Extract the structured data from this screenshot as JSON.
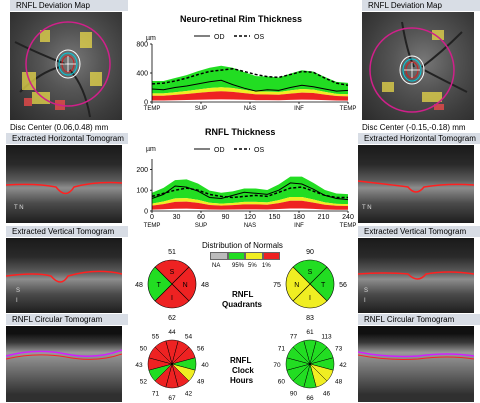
{
  "left": {
    "deviation_title": "RNFL Deviation Map",
    "disc_center": "Disc Center  (0.06,0.48) mm",
    "horiz_title": "Extracted Horizontal Tomogram",
    "vert_title": "Extracted Vertical Tomogram",
    "circ_title": "RNFL Circular Tomogram"
  },
  "right": {
    "deviation_title": "RNFL Deviation Map",
    "disc_center": "Disc Center  (-0.15,-0.18) mm",
    "horiz_title": "Extracted Horizontal Tomogram",
    "vert_title": "Extracted Vertical Tomogram",
    "circ_title": "RNFL Circular Tomogram"
  },
  "tomo_markers": {
    "horiz_left": "T  N",
    "vert_left_s": "S",
    "vert_left_i": "I",
    "horiz_right": "T  N",
    "vert_right_s": "S",
    "vert_right_i": "I"
  },
  "center": {
    "nr_title": "Neuro-retinal Rim Thickness",
    "rnfl_title": "RNFL Thickness",
    "legend_od": "OD",
    "legend_os": "OS",
    "unit": "µm",
    "distribution_title": "Distribution of Normals",
    "dist_labels": [
      "NA",
      "95%",
      "5%",
      "1%"
    ],
    "quadrants_label": [
      "RNFL",
      "Quadrants"
    ],
    "clock_label": [
      "RNFL",
      "Clock",
      "Hours"
    ]
  },
  "colors": {
    "green": "#22dd22",
    "yellow": "#f0ee22",
    "red": "#ee2222",
    "gray": "#bbbbbb",
    "white": "#ffffff",
    "od_line": "#000000",
    "os_line": "#000000"
  },
  "chart_data": [
    {
      "type": "area",
      "title": "Neuro-retinal Rim Thickness",
      "ylabel": "µm",
      "x_ticks": [
        "TEMP",
        "SUP",
        "NAS",
        "INF",
        "TEMP"
      ],
      "y_ticks": [
        0,
        400,
        800
      ],
      "ylim": [
        0,
        800
      ],
      "series": [
        {
          "name": "OD",
          "values": [
            180,
            170,
            200,
            220,
            250,
            280,
            300,
            240,
            190,
            150,
            170,
            160,
            200,
            230,
            210,
            180,
            150,
            160
          ]
        },
        {
          "name": "OS",
          "values": [
            250,
            260,
            290,
            330,
            380,
            420,
            440,
            460,
            420,
            380,
            350,
            340,
            380,
            420,
            410,
            330,
            260,
            230
          ]
        }
      ]
    },
    {
      "type": "area",
      "title": "RNFL Thickness",
      "ylabel": "µm",
      "x_ticks": [
        "0",
        "30",
        "60",
        "90",
        "120",
        "150",
        "180",
        "210",
        "240"
      ],
      "x_ticks_bottom": [
        "TEMP",
        "SUP",
        "NAS",
        "INF",
        "TEMP"
      ],
      "y_ticks": [
        0,
        100,
        200
      ],
      "ylim": [
        0,
        250
      ],
      "series": [
        {
          "name": "OD",
          "values": [
            60,
            80,
            120,
            115,
            95,
            65,
            60,
            75,
            90,
            85,
            80,
            100,
            135,
            130,
            105,
            75,
            60,
            55
          ]
        },
        {
          "name": "OS",
          "values": [
            70,
            85,
            100,
            110,
            100,
            80,
            70,
            65,
            70,
            75,
            70,
            90,
            110,
            115,
            95,
            75,
            65,
            65
          ]
        }
      ]
    }
  ],
  "quadrants": {
    "od": {
      "top": "51",
      "right": "48",
      "bottom": "62",
      "left": "48",
      "letters": [
        "S",
        "N",
        "I",
        "T"
      ],
      "colors": [
        "red",
        "red",
        "red",
        "green"
      ]
    },
    "os": {
      "top": "90",
      "right": "56",
      "bottom": "83",
      "left": "75",
      "letters": [
        "S",
        "T",
        "I",
        "N"
      ],
      "colors": [
        "green",
        "green",
        "yellow",
        "yellow"
      ]
    }
  },
  "clock": {
    "od": {
      "values": [
        "44",
        "54",
        "56",
        "40",
        "49",
        "42",
        "67",
        "71",
        "52",
        "43",
        "50",
        "55"
      ],
      "colors": [
        "red",
        "red",
        "red",
        "green",
        "yellow",
        "red",
        "red",
        "red",
        "green",
        "red",
        "red",
        "red"
      ]
    },
    "os": {
      "values": [
        "61",
        "113",
        "73",
        "42",
        "48",
        "46",
        "66",
        "90",
        "60",
        "70",
        "71",
        "77"
      ],
      "colors": [
        "green",
        "green",
        "green",
        "green",
        "yellow",
        "yellow",
        "green",
        "green",
        "green",
        "green",
        "green",
        "green"
      ]
    }
  }
}
